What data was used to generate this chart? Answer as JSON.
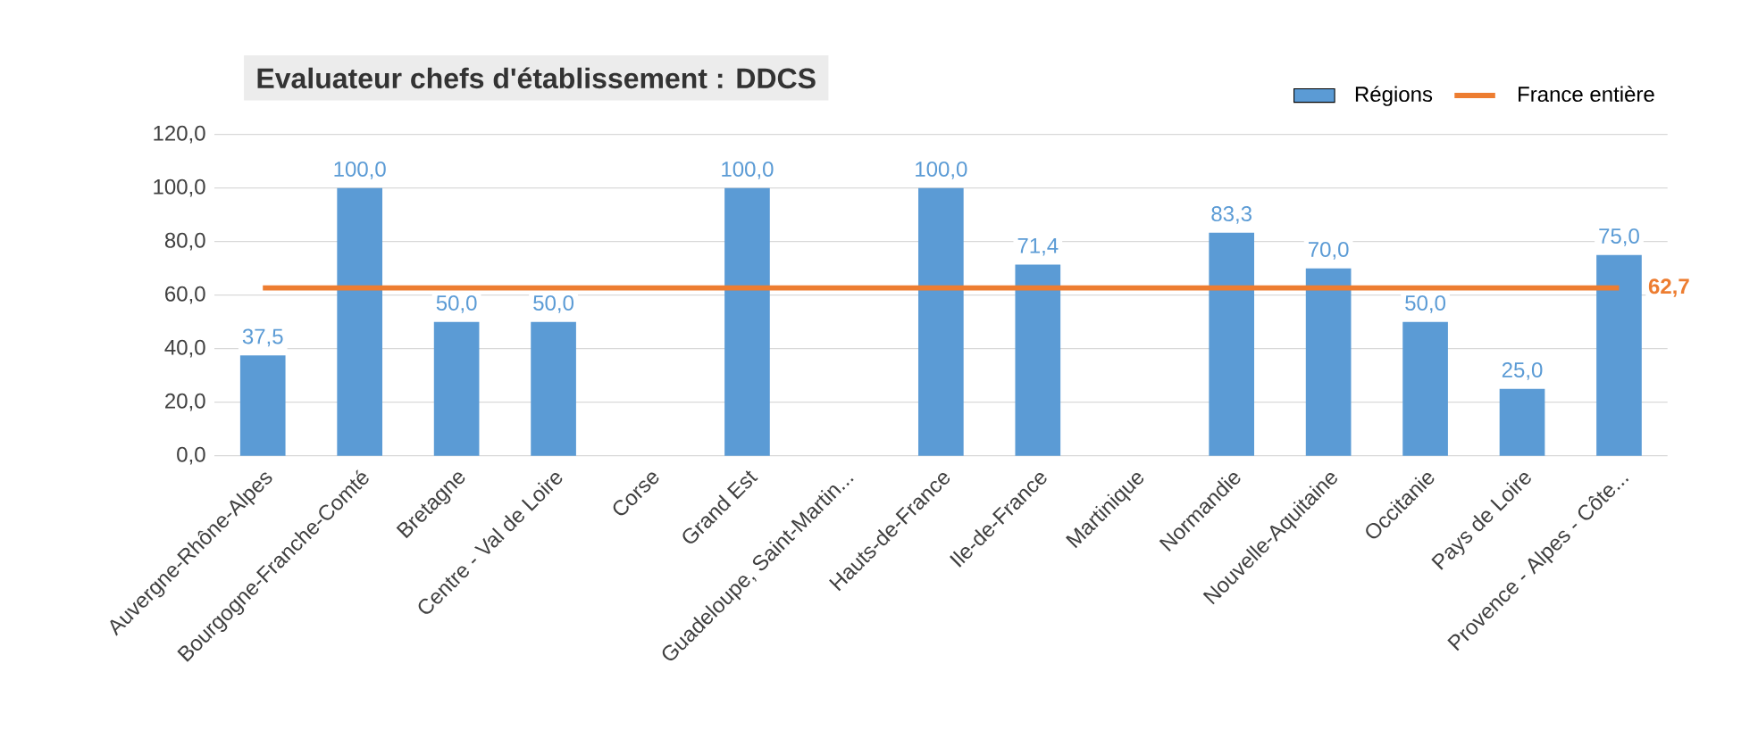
{
  "chart_data": {
    "type": "bar",
    "title": "Evaluateur chefs d'établissement : DDCS",
    "categories": [
      "Auvergne-Rhône-Alpes",
      "Bourgogne-Franche-Comté",
      "Bretagne",
      "Centre - Val de Loire",
      "Corse",
      "Grand Est",
      "Guadeloupe, Saint-Martin...",
      "Hauts-de-France",
      "Ile-de-France",
      "Martinique",
      "Normandie",
      "Nouvelle-Aquitaine",
      "Occitanie",
      "Pays de Loire",
      "Provence - Alpes - Côte..."
    ],
    "series": [
      {
        "name": "Régions",
        "color": "#5b9bd5",
        "values": [
          37.5,
          100,
          50,
          50,
          null,
          100,
          null,
          100,
          71.4,
          null,
          83.3,
          70,
          50,
          25,
          75
        ],
        "value_labels": [
          "37,5",
          "100,0",
          "50,0",
          "50,0",
          null,
          "100,0",
          null,
          "100,0",
          "71,4",
          null,
          "83,3",
          "70,0",
          "50,0",
          "25,0",
          "75,0"
        ]
      },
      {
        "name": "France entière",
        "type": "line",
        "color": "#ed7d31",
        "values": [
          62.7,
          62.7,
          62.7,
          62.7,
          62.7,
          62.7,
          62.7,
          62.7,
          62.7,
          62.7,
          62.7,
          62.7,
          62.7,
          62.7,
          62.7
        ],
        "value_labels": [
          null,
          null,
          null,
          null,
          null,
          null,
          null,
          null,
          null,
          null,
          null,
          null,
          null,
          null,
          "62,7"
        ]
      }
    ],
    "ylim": [
      0,
      120
    ],
    "yticks": [
      {
        "value": 0,
        "label": "0,0"
      },
      {
        "value": 20,
        "label": "20,0"
      },
      {
        "value": 40,
        "label": "40,0"
      },
      {
        "value": 60,
        "label": "60,0"
      },
      {
        "value": 80,
        "label": "80,0"
      },
      {
        "value": 100,
        "label": "100,0"
      },
      {
        "value": 120,
        "label": "120,0"
      }
    ],
    "grid": "y",
    "legend": "top right",
    "marker": "none"
  }
}
